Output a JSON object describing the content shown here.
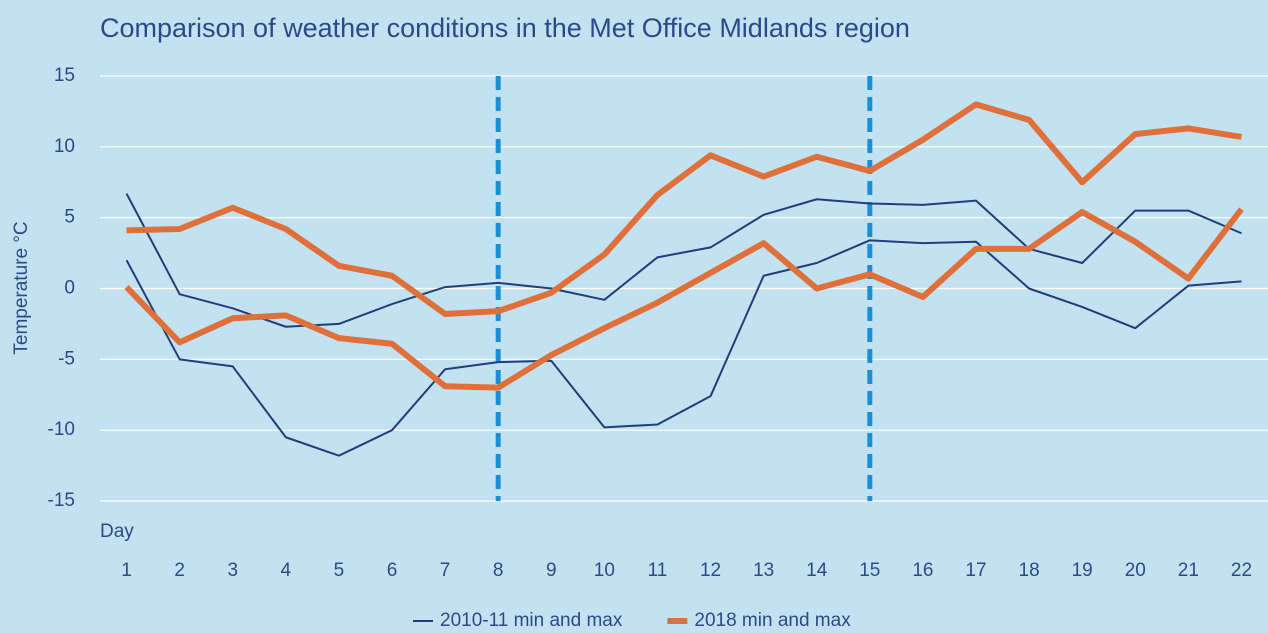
{
  "chart_data": {
    "type": "line",
    "title": "Comparison of weather conditions in the Met Office Midlands region",
    "xlabel": "Day",
    "ylabel": "Temperature °C",
    "x": [
      1,
      2,
      3,
      4,
      5,
      6,
      7,
      8,
      9,
      10,
      11,
      12,
      13,
      14,
      15,
      16,
      17,
      18,
      19,
      20,
      21,
      22
    ],
    "xlim": [
      0.5,
      22.5
    ],
    "xticks": [
      1,
      2,
      3,
      4,
      5,
      6,
      7,
      8,
      9,
      10,
      11,
      12,
      13,
      14,
      15,
      16,
      17,
      18,
      19,
      20,
      21,
      22
    ],
    "ylim": [
      -15,
      15
    ],
    "yticks": [
      -15,
      -10,
      -5,
      0,
      5,
      10,
      15
    ],
    "grid": true,
    "legend": "bottom",
    "vlines": [
      8,
      15
    ],
    "vline_color": "#1a8fd6",
    "series": [
      {
        "name": "2010-11 min and max",
        "color": "#203f7a",
        "width": 2,
        "values": [
          [
            6.7,
            -0.4,
            -1.4,
            -2.7,
            -2.5,
            -1.1,
            0.1,
            0.4,
            0.0,
            -0.8,
            2.2,
            2.9,
            5.2,
            6.3,
            6.0,
            5.9,
            6.2,
            2.8,
            1.8,
            5.5,
            5.5,
            3.9
          ],
          [
            2.0,
            -5.0,
            -5.5,
            -10.5,
            -11.8,
            -10.0,
            -5.7,
            -5.2,
            -5.1,
            -9.8,
            -9.6,
            -7.6,
            0.9,
            1.8,
            3.4,
            3.2,
            3.3,
            0.0,
            -1.3,
            -2.8,
            0.2,
            0.5
          ]
        ]
      },
      {
        "name": "2018 min and max",
        "color": "#e0703a",
        "width": 6,
        "values": [
          [
            4.1,
            4.2,
            5.7,
            4.2,
            1.6,
            0.9,
            -1.8,
            -1.6,
            -0.3,
            2.4,
            6.6,
            9.4,
            7.9,
            9.3,
            8.3,
            10.5,
            13.0,
            11.9,
            7.5,
            10.9,
            11.3,
            10.7
          ],
          [
            0.1,
            -3.8,
            -2.1,
            -1.9,
            -3.5,
            -3.9,
            -6.9,
            -7.0,
            -4.7,
            -2.8,
            -1.0,
            1.1,
            3.2,
            0.0,
            1.0,
            -0.6,
            2.8,
            2.8,
            5.4,
            3.3,
            0.7,
            5.6
          ]
        ]
      }
    ]
  }
}
